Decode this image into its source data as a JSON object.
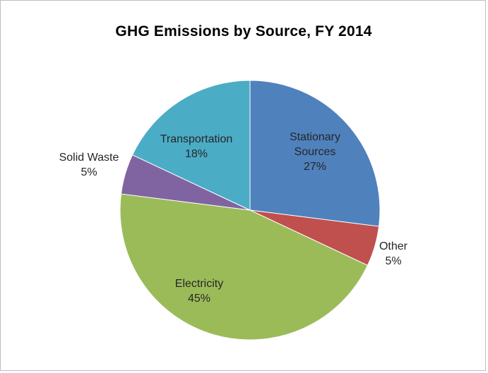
{
  "chart_data": {
    "type": "pie",
    "title": "GHG Emissions by Source, FY 2014",
    "slices": [
      {
        "label_lines": [
          "Stationary",
          "Sources"
        ],
        "value": 27,
        "display": "27%",
        "color": "#4f81bd"
      },
      {
        "label_lines": [
          "Other"
        ],
        "value": 5,
        "display": "5%",
        "color": "#c0504d"
      },
      {
        "label_lines": [
          "Electricity"
        ],
        "value": 45,
        "display": "45%",
        "color": "#9bbb59"
      },
      {
        "label_lines": [
          "Solid Waste"
        ],
        "value": 5,
        "display": "5%",
        "color": "#8064a2"
      },
      {
        "label_lines": [
          "Transportation"
        ],
        "value": 18,
        "display": "18%",
        "color": "#4bacc6"
      }
    ],
    "start_angle_deg": 0,
    "direction": "clockwise"
  }
}
